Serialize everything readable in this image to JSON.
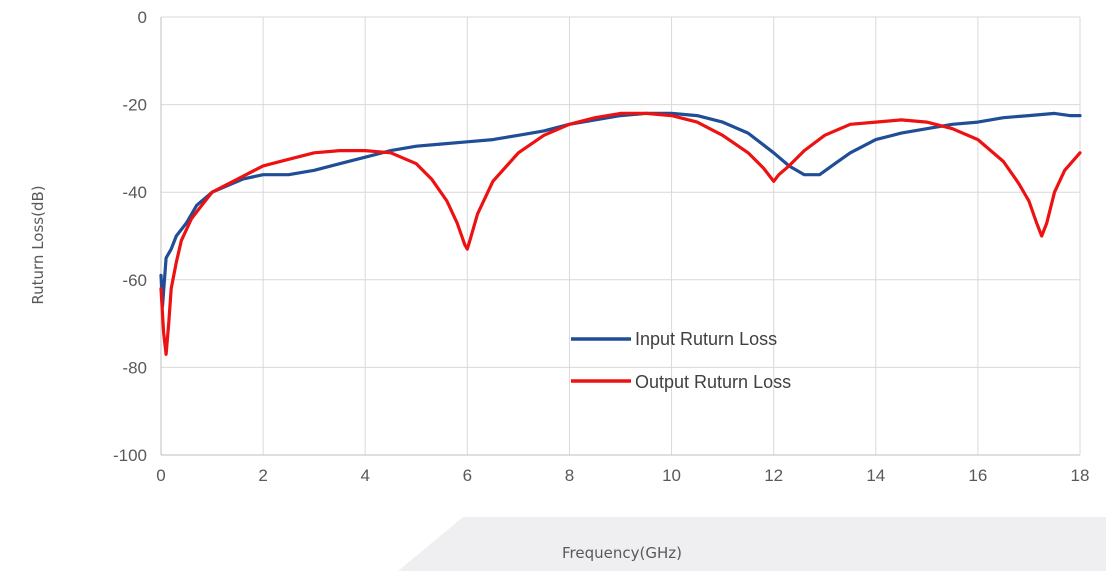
{
  "chart_data": {
    "type": "line",
    "title": "",
    "xlabel": "Frequency(GHz)",
    "ylabel": "Ruturn Loss(dB)",
    "xlim": [
      0,
      18
    ],
    "ylim": [
      -100,
      0
    ],
    "x_ticks": [
      0,
      2,
      4,
      6,
      8,
      10,
      12,
      14,
      16,
      18
    ],
    "y_ticks": [
      0,
      -20,
      -40,
      -60,
      -80,
      -100
    ],
    "grid": true,
    "legend_position": "center-right",
    "series": [
      {
        "name": "Input Ruturn Loss",
        "color": "#1f4e96",
        "x": [
          0,
          0.03,
          0.1,
          0.2,
          0.3,
          0.5,
          0.7,
          1.0,
          1.3,
          1.6,
          2.0,
          2.5,
          3.0,
          3.5,
          4.0,
          4.5,
          5.0,
          5.5,
          6.0,
          6.5,
          7.0,
          7.5,
          8.0,
          8.5,
          9.0,
          9.5,
          10.0,
          10.5,
          11.0,
          11.5,
          12.0,
          12.3,
          12.6,
          12.9,
          13.2,
          13.5,
          14.0,
          14.5,
          15.0,
          15.5,
          16.0,
          16.5,
          17.0,
          17.5,
          17.8,
          18.0
        ],
        "y": [
          -59,
          -66,
          -55,
          -53,
          -50,
          -47,
          -43,
          -40,
          -38.5,
          -37,
          -36,
          -36,
          -35,
          -33.5,
          -32,
          -30.5,
          -29.5,
          -29,
          -28.5,
          -28,
          -27,
          -26,
          -24.5,
          -23.5,
          -22.5,
          -22,
          -22,
          -22.5,
          -24,
          -26.5,
          -31,
          -34,
          -36,
          -36,
          -33.5,
          -31,
          -28,
          -26.5,
          -25.5,
          -24.5,
          -24,
          -23,
          -22.5,
          -22,
          -22.5,
          -22.5
        ]
      },
      {
        "name": "Output Ruturn Loss",
        "color": "#ee1111",
        "x": [
          0,
          0.05,
          0.1,
          0.15,
          0.2,
          0.3,
          0.4,
          0.6,
          0.8,
          1.0,
          1.5,
          2.0,
          2.5,
          3.0,
          3.5,
          4.0,
          4.5,
          5.0,
          5.3,
          5.6,
          5.8,
          5.95,
          6.0,
          6.05,
          6.2,
          6.5,
          7.0,
          7.5,
          8.0,
          8.5,
          9.0,
          9.5,
          10.0,
          10.5,
          11.0,
          11.5,
          11.8,
          12.0,
          12.1,
          12.3,
          12.6,
          13.0,
          13.5,
          14.0,
          14.5,
          15.0,
          15.5,
          16.0,
          16.5,
          16.8,
          17.0,
          17.15,
          17.25,
          17.35,
          17.5,
          17.7,
          18.0
        ],
        "y": [
          -62,
          -72,
          -77,
          -70,
          -62,
          -56,
          -51,
          -46,
          -43,
          -40,
          -37,
          -34,
          -32.5,
          -31,
          -30.5,
          -30.5,
          -31,
          -33.5,
          -37,
          -42,
          -47,
          -52,
          -53,
          -51,
          -45,
          -37.5,
          -31,
          -27,
          -24.5,
          -23,
          -22,
          -22,
          -22.5,
          -24,
          -27,
          -31,
          -34.5,
          -37.5,
          -36,
          -34,
          -30.5,
          -27,
          -24.5,
          -24,
          -23.5,
          -24,
          -25.5,
          -28,
          -33,
          -38,
          -42,
          -47,
          -50,
          -47,
          -40,
          -35,
          -31
        ]
      }
    ]
  }
}
